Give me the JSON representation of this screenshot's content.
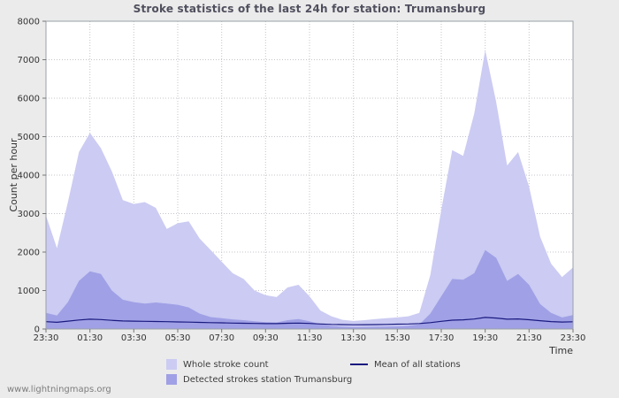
{
  "colors": {
    "page_bg": "#ebebeb",
    "plot_bg": "#ffffff",
    "grid": "#c4c4cc",
    "plot_border": "#9aa0a6",
    "axis_tick": "#777777",
    "title_text": "#4f4f5e",
    "axis_text": "#333333",
    "watermark_text": "#7d7d7d"
  },
  "footer": {
    "watermark": "www.lightningmaps.org"
  },
  "chart_data": {
    "type": "area",
    "title": "Stroke statistics of the last 24h for station: Trumansburg",
    "ylabel": "Count per hour",
    "xlabel": "Time",
    "ylim": [
      0,
      8000
    ],
    "y_ticks": [
      0,
      1000,
      2000,
      3000,
      4000,
      5000,
      6000,
      7000,
      8000
    ],
    "x_tick_labels": [
      "23:30",
      "01:30",
      "03:30",
      "05:30",
      "07:30",
      "09:30",
      "11:30",
      "13:30",
      "15:30",
      "17:30",
      "19:30",
      "21:30",
      "23:30"
    ],
    "x_hours_span": 24,
    "sample_interval_hours": 0.5,
    "grid": true,
    "legend_position": "bottom",
    "series": [
      {
        "name": "Whole stroke count",
        "type": "area",
        "color": "#cbcbf3",
        "values": [
          2950,
          2100,
          3300,
          4600,
          5100,
          4700,
          4100,
          3350,
          3250,
          3300,
          3150,
          2600,
          2750,
          2800,
          2350,
          2050,
          1750,
          1450,
          1300,
          1000,
          880,
          830,
          1080,
          1150,
          850,
          480,
          330,
          240,
          210,
          230,
          260,
          280,
          300,
          330,
          420,
          1400,
          3100,
          4650,
          4500,
          5600,
          7250,
          5900,
          4250,
          4600,
          3700,
          2400,
          1700,
          1350,
          1600
        ]
      },
      {
        "name": "Detected strokes station Trumansburg",
        "type": "area",
        "color": "#a0a0e6",
        "values": [
          420,
          350,
          700,
          1250,
          1500,
          1430,
          1000,
          760,
          700,
          660,
          690,
          660,
          630,
          560,
          400,
          310,
          280,
          250,
          230,
          200,
          180,
          170,
          230,
          260,
          200,
          120,
          80,
          60,
          50,
          55,
          60,
          65,
          70,
          85,
          120,
          400,
          850,
          1300,
          1280,
          1450,
          2050,
          1850,
          1250,
          1430,
          1150,
          650,
          420,
          300,
          360
        ]
      },
      {
        "name": "Mean of all stations",
        "type": "line",
        "color": "#1a1a80",
        "values": [
          190,
          175,
          205,
          235,
          255,
          245,
          225,
          210,
          205,
          200,
          195,
          190,
          185,
          180,
          172,
          165,
          160,
          155,
          150,
          145,
          140,
          140,
          150,
          155,
          145,
          130,
          120,
          115,
          110,
          112,
          116,
          120,
          126,
          132,
          142,
          165,
          200,
          230,
          240,
          260,
          300,
          285,
          255,
          262,
          242,
          215,
          192,
          182,
          188
        ]
      }
    ]
  }
}
